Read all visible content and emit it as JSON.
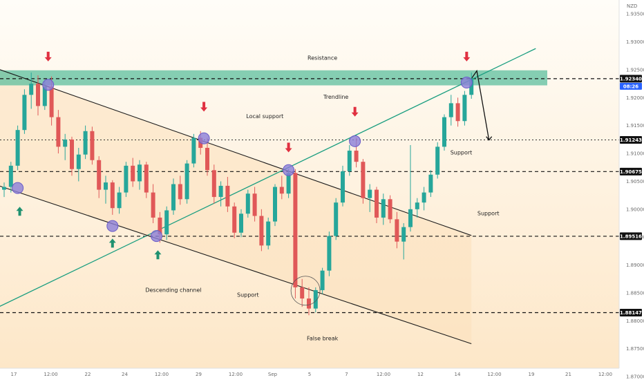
{
  "chart_data": {
    "type": "candlestick",
    "currency": "NZD",
    "price_axis": {
      "ylim": [
        1.8715,
        1.9375
      ],
      "ticks": [
        1.935,
        1.93,
        1.925,
        1.92,
        1.915,
        1.91,
        1.905,
        1.9,
        1.895,
        1.89,
        1.885,
        1.88,
        1.875,
        1.87
      ],
      "tick_labels": [
        "1.93500",
        "1.93000",
        "1.92500",
        "1.92000",
        "1.91500",
        "1.91000",
        "1.90500",
        "1.90000",
        "1.89500",
        "1.89000",
        "1.88500",
        "1.88000",
        "1.87500",
        "1.87000"
      ]
    },
    "time_axis": {
      "labels": [
        "17",
        "12:00",
        "22",
        "24",
        "12:00",
        "29",
        "12:00",
        "Sep",
        "5",
        "7",
        "12:00",
        "12",
        "14",
        "12:00",
        "19",
        "21",
        "12:00"
      ]
    },
    "levels": [
      {
        "value": 1.9234,
        "label": "1.92340",
        "style": "dashed"
      },
      {
        "value": 1.91243,
        "label": "1.91243",
        "style": "dotted"
      },
      {
        "value": 1.90675,
        "label": "1.90675",
        "style": "dashed"
      },
      {
        "value": 1.89516,
        "label": "1.89516",
        "style": "dashed"
      },
      {
        "value": 1.88147,
        "label": "1.88147",
        "style": "dashed"
      }
    ],
    "current_price": {
      "label": "1.92340",
      "countdown": "08:26"
    },
    "resistance_zone": [
      1.9222,
      1.9249
    ],
    "candles": [
      {
        "x": 0,
        "o": 1.9035,
        "h": 1.9048,
        "l": 1.9022,
        "c": 1.904
      },
      {
        "x": 1,
        "o": 1.904,
        "h": 1.9085,
        "l": 1.903,
        "c": 1.9078
      },
      {
        "x": 2,
        "o": 1.9078,
        "h": 1.915,
        "l": 1.907,
        "c": 1.9142
      },
      {
        "x": 3,
        "o": 1.9142,
        "h": 1.9215,
        "l": 1.9135,
        "c": 1.9205
      },
      {
        "x": 4,
        "o": 1.9205,
        "h": 1.9245,
        "l": 1.918,
        "c": 1.9225
      },
      {
        "x": 5,
        "o": 1.9225,
        "h": 1.924,
        "l": 1.9168,
        "c": 1.9185
      },
      {
        "x": 6,
        "o": 1.9185,
        "h": 1.923,
        "l": 1.9178,
        "c": 1.922
      },
      {
        "x": 7,
        "o": 1.922,
        "h": 1.9238,
        "l": 1.915,
        "c": 1.9165
      },
      {
        "x": 8,
        "o": 1.9165,
        "h": 1.9178,
        "l": 1.91,
        "c": 1.9112
      },
      {
        "x": 9,
        "o": 1.9112,
        "h": 1.9135,
        "l": 1.9088,
        "c": 1.9125
      },
      {
        "x": 10,
        "o": 1.9125,
        "h": 1.913,
        "l": 1.906,
        "c": 1.9072
      },
      {
        "x": 11,
        "o": 1.9072,
        "h": 1.911,
        "l": 1.905,
        "c": 1.9098
      },
      {
        "x": 12,
        "o": 1.9098,
        "h": 1.915,
        "l": 1.909,
        "c": 1.914
      },
      {
        "x": 13,
        "o": 1.914,
        "h": 1.9148,
        "l": 1.908,
        "c": 1.9088
      },
      {
        "x": 14,
        "o": 1.9088,
        "h": 1.9095,
        "l": 1.902,
        "c": 1.9035
      },
      {
        "x": 15,
        "o": 1.9035,
        "h": 1.906,
        "l": 1.901,
        "c": 1.9048
      },
      {
        "x": 16,
        "o": 1.9048,
        "h": 1.9052,
        "l": 1.899,
        "c": 1.9002
      },
      {
        "x": 17,
        "o": 1.9002,
        "h": 1.904,
        "l": 1.8992,
        "c": 1.903
      },
      {
        "x": 18,
        "o": 1.903,
        "h": 1.9085,
        "l": 1.9022,
        "c": 1.9078
      },
      {
        "x": 19,
        "o": 1.9078,
        "h": 1.9092,
        "l": 1.904,
        "c": 1.905
      },
      {
        "x": 20,
        "o": 1.905,
        "h": 1.9088,
        "l": 1.9035,
        "c": 1.908
      },
      {
        "x": 21,
        "o": 1.908,
        "h": 1.9085,
        "l": 1.902,
        "c": 1.903
      },
      {
        "x": 22,
        "o": 1.903,
        "h": 1.9045,
        "l": 1.8975,
        "c": 1.8985
      },
      {
        "x": 23,
        "o": 1.8985,
        "h": 1.8995,
        "l": 1.894,
        "c": 1.8955
      },
      {
        "x": 24,
        "o": 1.8955,
        "h": 1.9005,
        "l": 1.8945,
        "c": 1.8998
      },
      {
        "x": 25,
        "o": 1.8998,
        "h": 1.9055,
        "l": 1.899,
        "c": 1.9045
      },
      {
        "x": 26,
        "o": 1.9045,
        "h": 1.906,
        "l": 1.9008,
        "c": 1.9018
      },
      {
        "x": 27,
        "o": 1.9018,
        "h": 1.9088,
        "l": 1.901,
        "c": 1.9082
      },
      {
        "x": 28,
        "o": 1.9082,
        "h": 1.9135,
        "l": 1.9075,
        "c": 1.9128
      },
      {
        "x": 29,
        "o": 1.9128,
        "h": 1.914,
        "l": 1.9098,
        "c": 1.911
      },
      {
        "x": 30,
        "o": 1.911,
        "h": 1.9128,
        "l": 1.906,
        "c": 1.907
      },
      {
        "x": 31,
        "o": 1.907,
        "h": 1.908,
        "l": 1.901,
        "c": 1.9022
      },
      {
        "x": 32,
        "o": 1.9022,
        "h": 1.905,
        "l": 1.9005,
        "c": 1.9042
      },
      {
        "x": 33,
        "o": 1.9042,
        "h": 1.9058,
        "l": 1.8995,
        "c": 1.9005
      },
      {
        "x": 34,
        "o": 1.9005,
        "h": 1.9012,
        "l": 1.8948,
        "c": 1.8958
      },
      {
        "x": 35,
        "o": 1.8958,
        "h": 1.9,
        "l": 1.895,
        "c": 1.8992
      },
      {
        "x": 36,
        "o": 1.8992,
        "h": 1.9035,
        "l": 1.8985,
        "c": 1.9028
      },
      {
        "x": 37,
        "o": 1.9028,
        "h": 1.904,
        "l": 1.8978,
        "c": 1.8988
      },
      {
        "x": 38,
        "o": 1.8988,
        "h": 1.9,
        "l": 1.8925,
        "c": 1.8935
      },
      {
        "x": 39,
        "o": 1.8935,
        "h": 1.8985,
        "l": 1.8928,
        "c": 1.8978
      },
      {
        "x": 40,
        "o": 1.8978,
        "h": 1.9045,
        "l": 1.897,
        "c": 1.904
      },
      {
        "x": 41,
        "o": 1.904,
        "h": 1.906,
        "l": 1.9018,
        "c": 1.9028
      },
      {
        "x": 42,
        "o": 1.9028,
        "h": 1.9072,
        "l": 1.902,
        "c": 1.9065
      },
      {
        "x": 43,
        "o": 1.9065,
        "h": 1.9072,
        "l": 1.884,
        "c": 1.886
      },
      {
        "x": 44,
        "o": 1.886,
        "h": 1.8875,
        "l": 1.8825,
        "c": 1.884
      },
      {
        "x": 45,
        "o": 1.884,
        "h": 1.886,
        "l": 1.881,
        "c": 1.8822
      },
      {
        "x": 46,
        "o": 1.8822,
        "h": 1.886,
        "l": 1.8815,
        "c": 1.8855
      },
      {
        "x": 47,
        "o": 1.8855,
        "h": 1.8895,
        "l": 1.8848,
        "c": 1.889
      },
      {
        "x": 48,
        "o": 1.889,
        "h": 1.896,
        "l": 1.888,
        "c": 1.8952
      },
      {
        "x": 49,
        "o": 1.8952,
        "h": 1.902,
        "l": 1.8945,
        "c": 1.9012
      },
      {
        "x": 50,
        "o": 1.9012,
        "h": 1.9078,
        "l": 1.9005,
        "c": 1.9068
      },
      {
        "x": 51,
        "o": 1.9068,
        "h": 1.9115,
        "l": 1.906,
        "c": 1.9105
      },
      {
        "x": 52,
        "o": 1.9105,
        "h": 1.9128,
        "l": 1.9075,
        "c": 1.9085
      },
      {
        "x": 53,
        "o": 1.9085,
        "h": 1.909,
        "l": 1.901,
        "c": 1.902
      },
      {
        "x": 54,
        "o": 1.902,
        "h": 1.9045,
        "l": 1.8995,
        "c": 1.9035
      },
      {
        "x": 55,
        "o": 1.9035,
        "h": 1.904,
        "l": 1.8975,
        "c": 1.8985
      },
      {
        "x": 56,
        "o": 1.8985,
        "h": 1.9028,
        "l": 1.8972,
        "c": 1.9018
      },
      {
        "x": 57,
        "o": 1.9018,
        "h": 1.9025,
        "l": 1.8975,
        "c": 1.8982
      },
      {
        "x": 58,
        "o": 1.8982,
        "h": 1.8995,
        "l": 1.893,
        "c": 1.8942
      },
      {
        "x": 59,
        "o": 1.8942,
        "h": 1.8975,
        "l": 1.891,
        "c": 1.8968
      },
      {
        "x": 60,
        "o": 1.8968,
        "h": 1.9115,
        "l": 1.896,
        "c": 1.9
      },
      {
        "x": 61,
        "o": 1.9,
        "h": 1.902,
        "l": 1.8985,
        "c": 1.9012
      },
      {
        "x": 62,
        "o": 1.9012,
        "h": 1.904,
        "l": 1.8998,
        "c": 1.903
      },
      {
        "x": 63,
        "o": 1.903,
        "h": 1.907,
        "l": 1.9022,
        "c": 1.9062
      },
      {
        "x": 64,
        "o": 1.9062,
        "h": 1.912,
        "l": 1.9055,
        "c": 1.9112
      },
      {
        "x": 65,
        "o": 1.9112,
        "h": 1.917,
        "l": 1.9105,
        "c": 1.9165
      },
      {
        "x": 66,
        "o": 1.9165,
        "h": 1.9205,
        "l": 1.915,
        "c": 1.919
      },
      {
        "x": 67,
        "o": 1.919,
        "h": 1.92,
        "l": 1.9148,
        "c": 1.9158
      },
      {
        "x": 68,
        "o": 1.9158,
        "h": 1.9212,
        "l": 1.915,
        "c": 1.9205
      },
      {
        "x": 69,
        "o": 1.9205,
        "h": 1.9245,
        "l": 1.9198,
        "c": 1.9234
      }
    ],
    "lines": [
      {
        "name": "trendline",
        "from": [
          -2,
          1.8818
        ],
        "to": [
          78.5,
          1.9288
        ]
      },
      {
        "name": "channel-upper",
        "from": [
          -2,
          1.9256
        ],
        "to": [
          69,
          1.8953
        ]
      },
      {
        "name": "channel-lower",
        "from": [
          -2,
          1.9047
        ],
        "to": [
          69,
          1.8759
        ]
      },
      {
        "name": "forecast",
        "from": [
          [
            69,
            1.9234
          ],
          [
            69.8,
            1.9248
          ],
          [
            71.6,
            1.9124
          ]
        ]
      }
    ],
    "annotations": [
      {
        "text": "Resistance",
        "x": 47,
        "y": 1.9268
      },
      {
        "text": "Trendline",
        "x": 49,
        "y": 1.9198
      },
      {
        "text": "Local support",
        "x": 38.5,
        "y": 1.9163
      },
      {
        "text": "Support",
        "x": 67.5,
        "y": 1.9098
      },
      {
        "text": "Support",
        "x": 71.5,
        "y": 1.8989
      },
      {
        "text": "Descending channel",
        "x": 25,
        "y": 1.8852
      },
      {
        "text": "Support",
        "x": 36,
        "y": 1.8843
      },
      {
        "text": "False break",
        "x": 47,
        "y": 1.8765
      }
    ],
    "markers": {
      "circles": [
        [
          2,
          1.9038
        ],
        [
          6.5,
          1.9223
        ],
        [
          16,
          1.897
        ],
        [
          22.5,
          1.8952
        ],
        [
          29.5,
          1.9127
        ],
        [
          42,
          1.907
        ],
        [
          51.8,
          1.9122
        ],
        [
          68.3,
          1.9227
        ]
      ],
      "down_arrows": [
        [
          6.5,
          1.9265
        ],
        [
          29.5,
          1.9175
        ],
        [
          42,
          1.9102
        ],
        [
          51.8,
          1.9166
        ],
        [
          68.3,
          1.9265
        ]
      ],
      "up_arrows": [
        [
          2.3,
          1.8992
        ],
        [
          16,
          1.8935
        ],
        [
          22.7,
          1.8914
        ]
      ],
      "false_break_circle": [
        44.5,
        1.8854
      ]
    },
    "colors": {
      "bull": "#26a69a",
      "bear": "#e05858",
      "resistance_zone": "#5cbf9e",
      "trendline": "#1a9e80",
      "marker": "#8b7ed8",
      "arrow_down": "#e03040",
      "arrow_up": "#1f9170",
      "channel_fill": "#fbe3c3",
      "level_badge": "#111111",
      "current_badge": "#2962ff"
    }
  }
}
